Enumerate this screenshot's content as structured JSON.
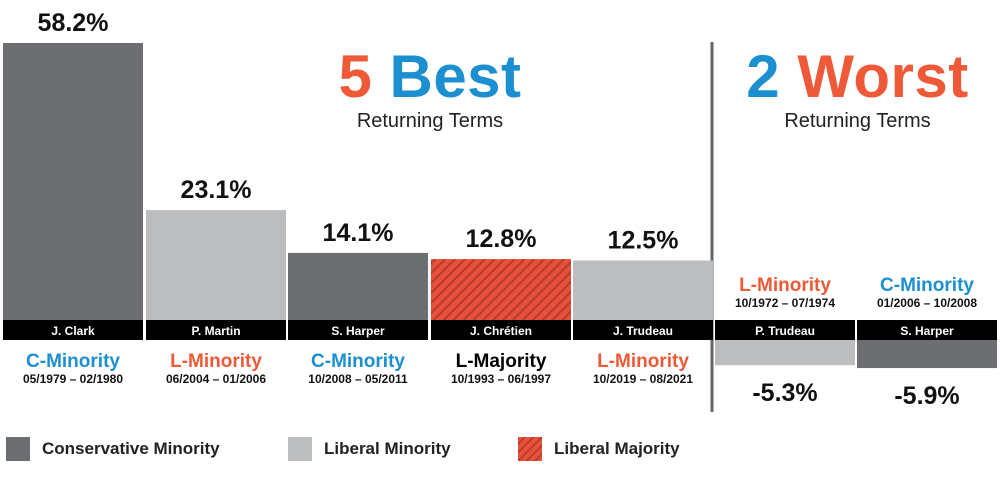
{
  "heading_best": {
    "number": "5",
    "word": "Best",
    "subtitle": "Returning Terms"
  },
  "heading_worst": {
    "number": "2",
    "word": "Worst",
    "subtitle": "Returning Terms"
  },
  "colors": {
    "conservative_minority": "#6d6e71",
    "liberal_minority": "#bcbdbf",
    "liberal_majority": "#e8503a",
    "blue": "#1b8fcf",
    "orange": "#ee5a37",
    "black": "#000000"
  },
  "legend": [
    {
      "label": "Conservative Minority",
      "key": "conservative_minority"
    },
    {
      "label": "Liberal Minority",
      "key": "liberal_minority"
    },
    {
      "label": "Liberal Majority",
      "key": "liberal_majority"
    }
  ],
  "chart_data": {
    "type": "bar",
    "title": "",
    "xlabel": "",
    "ylabel": "",
    "unit": "%",
    "categories": [
      "J. Clark",
      "P. Martin",
      "S. Harper",
      "J. Chrétien",
      "J. Trudeau",
      "P. Trudeau",
      "S. Harper"
    ],
    "values": [
      58.2,
      23.1,
      14.1,
      12.8,
      12.5,
      -5.3,
      -5.9
    ],
    "value_labels": [
      "58.2%",
      "23.1%",
      "14.1%",
      "12.8%",
      "12.5%",
      "-5.3%",
      "-5.9%"
    ],
    "government": [
      "C-Minority",
      "L-Minority",
      "C-Minority",
      "L-Majority",
      "L-Minority",
      "L-Minority",
      "C-Minority"
    ],
    "government_type": [
      "conservative_minority",
      "liberal_minority",
      "conservative_minority",
      "liberal_majority",
      "liberal_minority",
      "liberal_minority",
      "conservative_minority"
    ],
    "terms": [
      "05/1979 – 02/1980",
      "06/2004 – 01/2006",
      "10/2008 – 05/2011",
      "10/1993 – 06/1997",
      "10/2019 – 08/2021",
      "10/1972 – 07/1974",
      "01/2006 – 10/2008"
    ],
    "groups": [
      "5 Best",
      "5 Best",
      "5 Best",
      "5 Best",
      "5 Best",
      "2 Worst",
      "2 Worst"
    ],
    "grid": false
  }
}
